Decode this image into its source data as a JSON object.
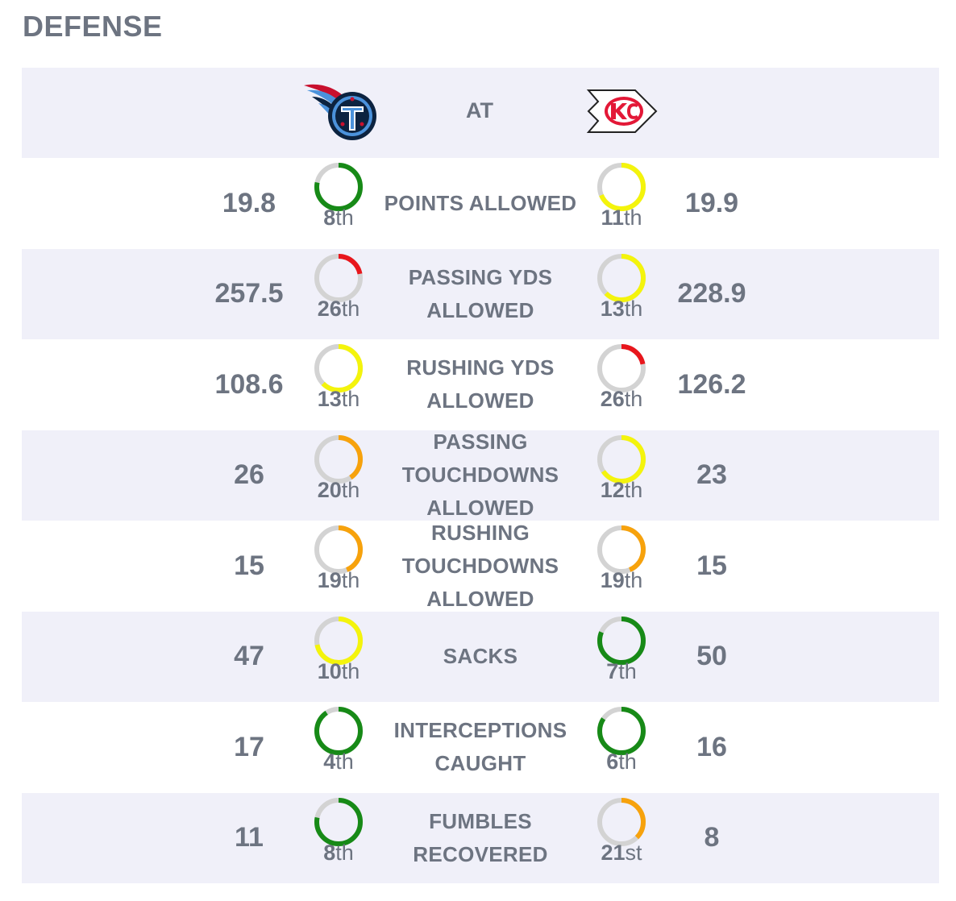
{
  "section_title": "DEFENSE",
  "header": {
    "away_team_logo": "titans-logo",
    "at_label": "AT",
    "home_team_logo": "chiefs-logo"
  },
  "colors": {
    "green": "#178a17",
    "yellow": "#f4f40c",
    "orange": "#f7a20c",
    "red": "#e8161c",
    "track": "#d3d3d3",
    "shaded_row": "#f0f0f9",
    "text": "#6d7481"
  },
  "rows": [
    {
      "label": "POINTS ALLOWED",
      "away": {
        "value": "19.8",
        "rank_num": "8",
        "rank_suffix": "th",
        "color": "#178a17"
      },
      "home": {
        "value": "19.9",
        "rank_num": "11",
        "rank_suffix": "th",
        "color": "#f4f40c"
      }
    },
    {
      "label": "PASSING YDS ALLOWED",
      "away": {
        "value": "257.5",
        "rank_num": "26",
        "rank_suffix": "th",
        "color": "#e8161c"
      },
      "home": {
        "value": "228.9",
        "rank_num": "13",
        "rank_suffix": "th",
        "color": "#f4f40c"
      }
    },
    {
      "label": "RUSHING YDS ALLOWED",
      "away": {
        "value": "108.6",
        "rank_num": "13",
        "rank_suffix": "th",
        "color": "#f4f40c"
      },
      "home": {
        "value": "126.2",
        "rank_num": "26",
        "rank_suffix": "th",
        "color": "#e8161c"
      }
    },
    {
      "label": "PASSING TOUCHDOWNS ALLOWED",
      "away": {
        "value": "26",
        "rank_num": "20",
        "rank_suffix": "th",
        "color": "#f7a20c"
      },
      "home": {
        "value": "23",
        "rank_num": "12",
        "rank_suffix": "th",
        "color": "#f4f40c"
      }
    },
    {
      "label": "RUSHING TOUCHDOWNS ALLOWED",
      "away": {
        "value": "15",
        "rank_num": "19",
        "rank_suffix": "th",
        "color": "#f7a20c"
      },
      "home": {
        "value": "15",
        "rank_num": "19",
        "rank_suffix": "th",
        "color": "#f7a20c"
      }
    },
    {
      "label": "SACKS",
      "away": {
        "value": "47",
        "rank_num": "10",
        "rank_suffix": "th",
        "color": "#f4f40c"
      },
      "home": {
        "value": "50",
        "rank_num": "7",
        "rank_suffix": "th",
        "color": "#178a17"
      }
    },
    {
      "label": "INTERCEPTIONS CAUGHT",
      "away": {
        "value": "17",
        "rank_num": "4",
        "rank_suffix": "th",
        "color": "#178a17"
      },
      "home": {
        "value": "16",
        "rank_num": "6",
        "rank_suffix": "th",
        "color": "#178a17"
      }
    },
    {
      "label": "FUMBLES RECOVERED",
      "away": {
        "value": "11",
        "rank_num": "8",
        "rank_suffix": "th",
        "color": "#178a17"
      },
      "home": {
        "value": "8",
        "rank_num": "21",
        "rank_suffix": "st",
        "color": "#f7a20c"
      }
    }
  ]
}
